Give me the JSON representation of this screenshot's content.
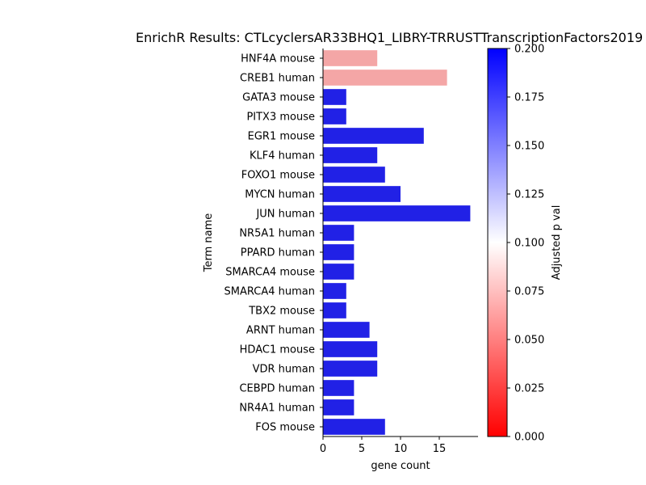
{
  "chart_data": {
    "type": "bar",
    "orientation": "horizontal",
    "title": "EnrichR Results: CTLcyclersAR33BHQ1_LIBRY-TRRUSTTranscriptionFactors2019",
    "xlabel": "gene count",
    "ylabel": "Term name",
    "xlim": [
      0,
      20
    ],
    "xticks": [
      0,
      5,
      10,
      15
    ],
    "grid": false,
    "categories": [
      "HNF4A mouse",
      "CREB1 human",
      "GATA3 mouse",
      "PITX3 mouse",
      "EGR1 mouse",
      "KLF4 human",
      "FOXO1 mouse",
      "MYCN human",
      "JUN human",
      "NR5A1 human",
      "PPARD human",
      "SMARCA4 mouse",
      "SMARCA4 human",
      "TBX2 mouse",
      "ARNT human",
      "HDAC1 mouse",
      "VDR human",
      "CEBPD human",
      "NR4A1 human",
      "FOS mouse"
    ],
    "values": [
      7,
      16,
      3,
      3,
      13,
      7,
      8,
      10,
      19,
      4,
      4,
      4,
      3,
      3,
      6,
      7,
      7,
      4,
      4,
      8
    ],
    "bar_colors": [
      "#f4a6a6",
      "#f4a6a6",
      "#2121e6",
      "#2121e6",
      "#2121e6",
      "#2121e6",
      "#2121e6",
      "#2121e6",
      "#2121e6",
      "#2121e6",
      "#2121e6",
      "#2121e6",
      "#2121e6",
      "#2121e6",
      "#2121e6",
      "#2121e6",
      "#2121e6",
      "#2121e6",
      "#2121e6",
      "#2121e6"
    ],
    "colorbar": {
      "label": "Adjusted p val",
      "range": [
        0,
        0.2
      ],
      "ticks": [
        "0.000",
        "0.025",
        "0.050",
        "0.075",
        "0.100",
        "0.125",
        "0.150",
        "0.175",
        "0.200"
      ],
      "colors": [
        "#ff0000",
        "#ffffff",
        "#0000ff"
      ]
    }
  }
}
